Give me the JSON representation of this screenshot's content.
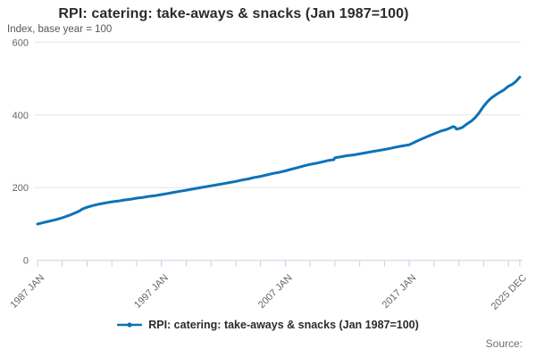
{
  "chart_data": {
    "type": "line",
    "title": "RPI: catering: take-aways & snacks (Jan 1987=100)",
    "subtitle": "Index, base year = 100",
    "ylabel": "Index, base year = 100",
    "xlabel": "",
    "source_label": "Source:",
    "legend": [
      "RPI: catering: take-aways & snacks (Jan 1987=100)"
    ],
    "legend_position": "bottom-center",
    "grid": "horizontal-only",
    "colors": {
      "line": "#0d72b7",
      "axis": "#c7d1e1",
      "grid": "#e6e6e6",
      "label_text": "#666666",
      "title_text": "#2b2b2b"
    },
    "y_axis": {
      "min": 0,
      "max": 600,
      "ticks": [
        0,
        200,
        400,
        600
      ]
    },
    "x_axis": {
      "min_year": 1987,
      "max_year": 2026.0,
      "tick_years": [
        1987,
        1989,
        1991,
        1993,
        1995,
        1997,
        1999,
        2001,
        2003,
        2005,
        2007,
        2009,
        2011,
        2013,
        2015,
        2017,
        2019,
        2021,
        2023,
        2025
      ],
      "labeled_ticks": [
        {
          "year": 1987.0,
          "label": "1987 JAN"
        },
        {
          "year": 1997.0,
          "label": "1997 JAN"
        },
        {
          "year": 2007.0,
          "label": "2007 JAN"
        },
        {
          "year": 2017.0,
          "label": "2017 JAN"
        },
        {
          "year": 2025.92,
          "label": "2025 DEC"
        }
      ]
    },
    "series": [
      {
        "name": "RPI: catering: take-aways & snacks (Jan 1987=100)",
        "color": "#0d72b7",
        "points": [
          [
            1987.0,
            100
          ],
          [
            1987.25,
            102
          ],
          [
            1987.5,
            104
          ],
          [
            1987.75,
            106
          ],
          [
            1988.0,
            108
          ],
          [
            1988.5,
            112
          ],
          [
            1989.0,
            117
          ],
          [
            1989.5,
            123
          ],
          [
            1990.0,
            130
          ],
          [
            1990.4,
            136
          ],
          [
            1990.6,
            141
          ],
          [
            1991.0,
            146
          ],
          [
            1991.5,
            151
          ],
          [
            1992.0,
            155
          ],
          [
            1992.5,
            158
          ],
          [
            1993.0,
            161
          ],
          [
            1993.5,
            163
          ],
          [
            1994.0,
            166
          ],
          [
            1994.5,
            168
          ],
          [
            1995.0,
            171
          ],
          [
            1995.5,
            173
          ],
          [
            1996.0,
            176
          ],
          [
            1996.5,
            178
          ],
          [
            1997.0,
            181
          ],
          [
            1997.5,
            184
          ],
          [
            1998.0,
            187
          ],
          [
            1998.5,
            190
          ],
          [
            1999.0,
            193
          ],
          [
            1999.5,
            196
          ],
          [
            2000.0,
            199
          ],
          [
            2000.5,
            202
          ],
          [
            2001.0,
            205
          ],
          [
            2001.5,
            208
          ],
          [
            2002.0,
            211
          ],
          [
            2002.5,
            214
          ],
          [
            2003.0,
            217
          ],
          [
            2003.5,
            221
          ],
          [
            2004.0,
            224
          ],
          [
            2004.5,
            228
          ],
          [
            2005.0,
            231
          ],
          [
            2005.5,
            235
          ],
          [
            2006.0,
            239
          ],
          [
            2006.5,
            242
          ],
          [
            2007.0,
            246
          ],
          [
            2007.5,
            251
          ],
          [
            2008.0,
            255
          ],
          [
            2008.5,
            260
          ],
          [
            2009.0,
            264
          ],
          [
            2009.5,
            267
          ],
          [
            2010.0,
            271
          ],
          [
            2010.5,
            275
          ],
          [
            2010.92,
            277
          ],
          [
            2011.0,
            282
          ],
          [
            2011.5,
            285
          ],
          [
            2012.0,
            288
          ],
          [
            2012.5,
            290
          ],
          [
            2013.0,
            293
          ],
          [
            2013.5,
            296
          ],
          [
            2014.0,
            299
          ],
          [
            2014.5,
            302
          ],
          [
            2015.0,
            305
          ],
          [
            2015.5,
            308
          ],
          [
            2016.0,
            312
          ],
          [
            2016.5,
            315
          ],
          [
            2017.0,
            318
          ],
          [
            2017.5,
            326
          ],
          [
            2018.0,
            334
          ],
          [
            2018.5,
            341
          ],
          [
            2019.0,
            348
          ],
          [
            2019.5,
            355
          ],
          [
            2020.0,
            360
          ],
          [
            2020.3,
            364
          ],
          [
            2020.55,
            368
          ],
          [
            2020.7,
            366
          ],
          [
            2020.8,
            361
          ],
          [
            2021.0,
            362
          ],
          [
            2021.3,
            366
          ],
          [
            2021.6,
            374
          ],
          [
            2022.0,
            383
          ],
          [
            2022.3,
            392
          ],
          [
            2022.6,
            404
          ],
          [
            2023.0,
            424
          ],
          [
            2023.3,
            436
          ],
          [
            2023.6,
            446
          ],
          [
            2024.0,
            456
          ],
          [
            2024.3,
            462
          ],
          [
            2024.6,
            468
          ],
          [
            2025.0,
            479
          ],
          [
            2025.3,
            484
          ],
          [
            2025.6,
            492
          ],
          [
            2025.92,
            504
          ]
        ]
      }
    ]
  }
}
